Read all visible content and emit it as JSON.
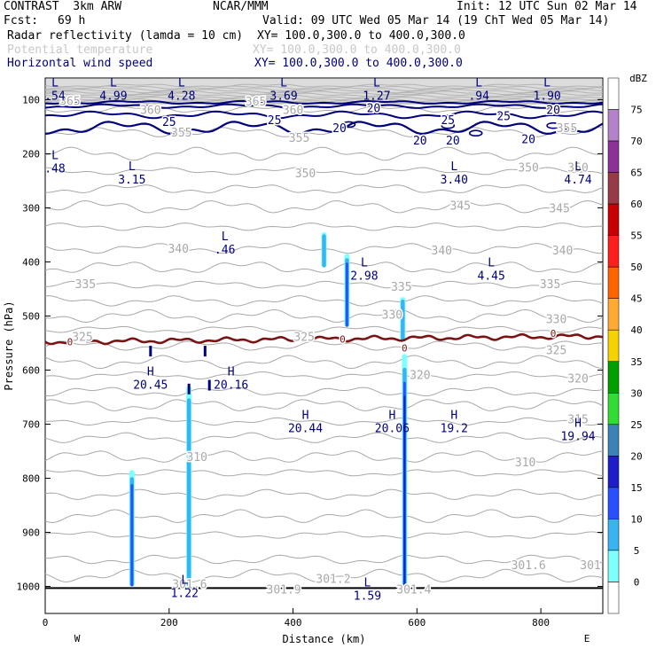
{
  "header": {
    "model": "CONTRAST  3km ARW",
    "org": "NCAR/MMM",
    "init": "Init: 12 UTC Sun 02 Mar 14",
    "fcst_label": "Fcst:",
    "fcst_value": "69 h",
    "valid": "Valid: 09 UTC Wed 05 Mar 14 (19 ChT Wed 05 Mar 14)",
    "fields": [
      {
        "name": "Radar reflectivity (lamda = 10 cm)",
        "xy": "XY= 100.0,300.0 to 400.0,300.0",
        "color": "#000000"
      },
      {
        "name": "Potential temperature",
        "xy": "XY= 100.0,300.0 to 400.0,300.0",
        "color": "#c8c8c8"
      },
      {
        "name": "Horizontal wind speed",
        "xy": "XY= 100.0,300.0 to 400.0,300.0",
        "color": "#00007a"
      }
    ]
  },
  "chart_data": {
    "type": "contour-cross-section",
    "xlabel": "Distance (km)",
    "ylabel": "Pressure (hPa)",
    "xlim": [
      0,
      900
    ],
    "ylim": [
      1050,
      60
    ],
    "xticks": [
      0,
      200,
      400,
      600,
      800
    ],
    "yticks": [
      100,
      200,
      300,
      400,
      500,
      600,
      700,
      800,
      900,
      1000
    ],
    "x_end_labels": {
      "left": "W",
      "right": "E"
    },
    "colorbar": {
      "unit": "dBZ",
      "levels": [
        0,
        5,
        10,
        15,
        20,
        25,
        30,
        35,
        40,
        45,
        50,
        55,
        60,
        65,
        70,
        75
      ],
      "colors": [
        "#ffffff",
        "#7fffff",
        "#38b4f0",
        "#2850ff",
        "#1e1ec8",
        "#3c82b4",
        "#32dc32",
        "#00a000",
        "#f5d200",
        "#ffaa32",
        "#ff6400",
        "#ff1e1e",
        "#c80000",
        "#963c46",
        "#8c3296",
        "#b482c8",
        "#ffffff"
      ]
    },
    "theta_labels": [
      {
        "text": "365",
        "x": 40,
        "p": 102
      },
      {
        "text": "365",
        "x": 340,
        "p": 103
      },
      {
        "text": "360",
        "x": 170,
        "p": 118
      },
      {
        "text": "360",
        "x": 400,
        "p": 118
      },
      {
        "text": "355",
        "x": 220,
        "p": 160
      },
      {
        "text": "355",
        "x": 410,
        "p": 170
      },
      {
        "text": "355",
        "x": 842,
        "p": 152
      },
      {
        "text": "350",
        "x": 420,
        "p": 235
      },
      {
        "text": "350",
        "x": 780,
        "p": 225
      },
      {
        "text": "350",
        "x": 860,
        "p": 225
      },
      {
        "text": "345",
        "x": 670,
        "p": 295
      },
      {
        "text": "345",
        "x": 830,
        "p": 300
      },
      {
        "text": "340",
        "x": 215,
        "p": 375
      },
      {
        "text": "340",
        "x": 640,
        "p": 378
      },
      {
        "text": "340",
        "x": 835,
        "p": 378
      },
      {
        "text": "335",
        "x": 65,
        "p": 440
      },
      {
        "text": "335",
        "x": 575,
        "p": 445
      },
      {
        "text": "335",
        "x": 815,
        "p": 440
      },
      {
        "text": "330",
        "x": 560,
        "p": 497
      },
      {
        "text": "330",
        "x": 825,
        "p": 505
      },
      {
        "text": "325",
        "x": 60,
        "p": 538
      },
      {
        "text": "325",
        "x": 418,
        "p": 538
      },
      {
        "text": "325",
        "x": 825,
        "p": 562
      },
      {
        "text": "320",
        "x": 605,
        "p": 608
      },
      {
        "text": "320",
        "x": 860,
        "p": 615
      },
      {
        "text": "315",
        "x": 860,
        "p": 690
      },
      {
        "text": "310",
        "x": 245,
        "p": 760
      },
      {
        "text": "310",
        "x": 775,
        "p": 770
      },
      {
        "text": "301.6",
        "x": 233,
        "p": 995
      },
      {
        "text": "301.9",
        "x": 385,
        "p": 1005
      },
      {
        "text": "301.2",
        "x": 465,
        "p": 985
      },
      {
        "text": "301.4",
        "x": 595,
        "p": 1005
      },
      {
        "text": "301.6",
        "x": 780,
        "p": 960
      },
      {
        "text": "301",
        "x": 880,
        "p": 960
      }
    ],
    "wind_labels": [
      {
        "text": "20",
        "x": 530,
        "p": 115
      },
      {
        "text": "20",
        "x": 820,
        "p": 118
      },
      {
        "text": "25",
        "x": 200,
        "p": 140
      },
      {
        "text": "25",
        "x": 370,
        "p": 137
      },
      {
        "text": "25",
        "x": 650,
        "p": 137
      },
      {
        "text": "25",
        "x": 740,
        "p": 130
      },
      {
        "text": "20",
        "x": 475,
        "p": 152
      },
      {
        "text": "20",
        "x": 605,
        "p": 175
      },
      {
        "text": "20",
        "x": 658,
        "p": 175
      },
      {
        "text": "20",
        "x": 780,
        "p": 172
      }
    ],
    "highs_lows": [
      {
        "type": "L",
        "x": 10,
        "p": 85,
        "value": ".54"
      },
      {
        "type": "L",
        "x": 110,
        "p": 85,
        "value": "4.99"
      },
      {
        "type": "L",
        "x": 220,
        "p": 85,
        "value": "4.28"
      },
      {
        "type": "L",
        "x": 385,
        "p": 85,
        "value": "3.69"
      },
      {
        "type": "L",
        "x": 535,
        "p": 85,
        "value": "1.27"
      },
      {
        "type": "L",
        "x": 700,
        "p": 85,
        "value": ".94"
      },
      {
        "type": "L",
        "x": 810,
        "p": 85,
        "value": "1.90"
      },
      {
        "type": "L",
        "x": 10,
        "p": 220,
        "value": ".48"
      },
      {
        "type": "L",
        "x": 140,
        "p": 240,
        "value": "3.15"
      },
      {
        "type": "L",
        "x": 660,
        "p": 240,
        "value": "3.40"
      },
      {
        "type": "L",
        "x": 860,
        "p": 240,
        "value": "4.74"
      },
      {
        "type": "L",
        "x": 290,
        "p": 370,
        "value": ".46"
      },
      {
        "type": "L",
        "x": 515,
        "p": 418,
        "value": "2.98"
      },
      {
        "type": "L",
        "x": 720,
        "p": 418,
        "value": "4.45"
      },
      {
        "type": "H",
        "x": 170,
        "p": 620,
        "value": "20.45"
      },
      {
        "type": "H",
        "x": 300,
        "p": 620,
        "value": "20.16"
      },
      {
        "type": "H",
        "x": 420,
        "p": 700,
        "value": "20.44"
      },
      {
        "type": "H",
        "x": 560,
        "p": 700,
        "value": "20.06"
      },
      {
        "type": "H",
        "x": 660,
        "p": 700,
        "value": "19.2"
      },
      {
        "type": "H",
        "x": 860,
        "p": 715,
        "value": "19.94"
      },
      {
        "type": "L",
        "x": 225,
        "p": 1005,
        "value": "1.22"
      },
      {
        "type": "L",
        "x": 520,
        "p": 1010,
        "value": "1.59"
      }
    ],
    "zero_isotherm_labels": [
      {
        "text": "0",
        "x": 40,
        "p": 548
      },
      {
        "text": "0",
        "x": 480,
        "p": 543
      },
      {
        "text": "0",
        "x": 580,
        "p": 559
      },
      {
        "text": "0",
        "x": 820,
        "p": 532
      }
    ],
    "reflectivity_cells": [
      {
        "x": 140,
        "p_top": 785,
        "p_bottom": 1000,
        "peak_dbz": 15
      },
      {
        "x": 232,
        "p_top": 630,
        "p_bottom": 1000,
        "peak_dbz": 10
      },
      {
        "x": 450,
        "p_top": 345,
        "p_bottom": 410,
        "peak_dbz": 10
      },
      {
        "x": 487,
        "p_top": 385,
        "p_bottom": 520,
        "peak_dbz": 15
      },
      {
        "x": 580,
        "p_top": 570,
        "p_bottom": 1000,
        "peak_dbz": 20
      },
      {
        "x": 577,
        "p_top": 465,
        "p_bottom": 545,
        "peak_dbz": 10
      }
    ]
  }
}
